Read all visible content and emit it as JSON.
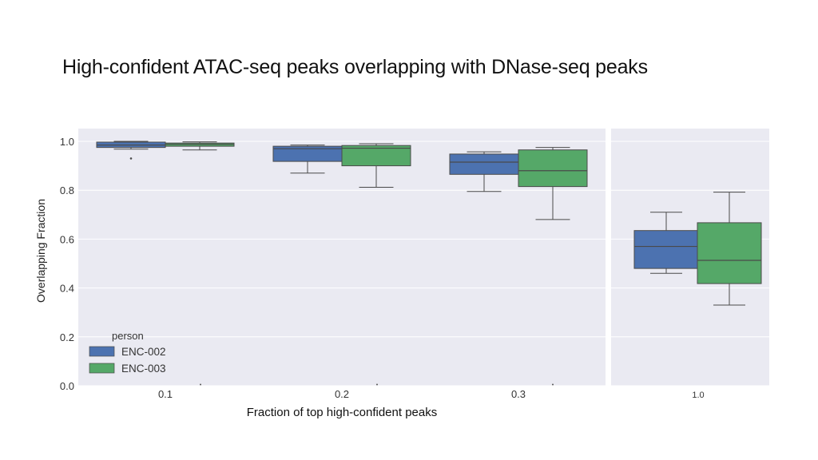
{
  "title": "High-confident ATAC-seq peaks overlapping with DNase-seq peaks",
  "chart_data": {
    "type": "box",
    "xlabel": "Fraction of top high-confident peaks",
    "ylabel": "Overlapping Fraction",
    "ylim": [
      0.0,
      1.05
    ],
    "yticks": [
      "1.0",
      "0.8",
      "0.6",
      "0.4",
      "0.2",
      "0.0"
    ],
    "categories": [
      "0.1",
      "0.2",
      "0.3"
    ],
    "inset_category": "1.0",
    "legend": {
      "title": "person",
      "entries": [
        "ENC-002",
        "ENC-003"
      ],
      "location": "lower-left"
    },
    "series_colors": {
      "ENC-002": "#4c72b0",
      "ENC-003": "#55a868"
    },
    "series": [
      {
        "name": "ENC-002",
        "boxes": [
          {
            "category": "0.1",
            "whislo": 0.968,
            "q1": 0.975,
            "med": 0.985,
            "q3": 0.997,
            "whishi": 1.0,
            "fliers": [
              0.93
            ]
          },
          {
            "category": "0.2",
            "whislo": 0.87,
            "q1": 0.918,
            "med": 0.97,
            "q3": 0.98,
            "whishi": 0.985,
            "fliers": []
          },
          {
            "category": "0.3",
            "whislo": 0.795,
            "q1": 0.865,
            "med": 0.915,
            "q3": 0.948,
            "whishi": 0.957,
            "fliers": []
          },
          {
            "category": "1.0",
            "whislo": 0.46,
            "q1": 0.48,
            "med": 0.57,
            "q3": 0.635,
            "whishi": 0.71,
            "fliers": []
          }
        ]
      },
      {
        "name": "ENC-003",
        "boxes": [
          {
            "category": "0.1",
            "whislo": 0.965,
            "q1": 0.98,
            "med": 0.988,
            "q3": 0.993,
            "whishi": 0.998,
            "fliers": []
          },
          {
            "category": "0.2",
            "whislo": 0.812,
            "q1": 0.9,
            "med": 0.972,
            "q3": 0.983,
            "whishi": 0.99,
            "fliers": []
          },
          {
            "category": "0.3",
            "whislo": 0.68,
            "q1": 0.815,
            "med": 0.88,
            "q3": 0.965,
            "whishi": 0.975,
            "fliers": []
          },
          {
            "category": "1.0",
            "whislo": 0.33,
            "q1": 0.418,
            "med": 0.513,
            "q3": 0.667,
            "whishi": 0.792,
            "fliers": []
          }
        ]
      }
    ]
  }
}
